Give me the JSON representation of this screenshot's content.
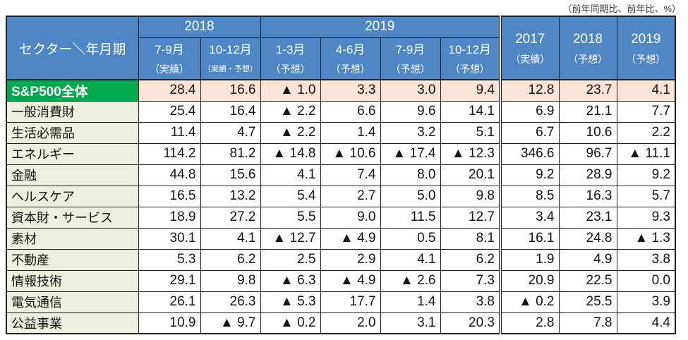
{
  "note": "（前年同期比、前年比、%）",
  "table": {
    "corner_label": "セクター＼年月期",
    "year_groups": [
      {
        "label": "2018",
        "span": 2
      },
      {
        "label": "2019",
        "span": 4
      }
    ],
    "quarter_columns": [
      {
        "period": "7-9月",
        "sub": "（実績）",
        "small": false
      },
      {
        "period": "10-12月",
        "sub": "（実績・予想）",
        "small": true
      },
      {
        "period": "1-3月",
        "sub": "（予想）",
        "small": false
      },
      {
        "period": "4-6月",
        "sub": "（予想）",
        "small": false
      },
      {
        "period": "7-9月",
        "sub": "（予想）",
        "small": false
      },
      {
        "period": "10-12月",
        "sub": "（予想）",
        "small": false
      }
    ],
    "annual_columns": [
      {
        "year": "2017",
        "sub": "（実績）"
      },
      {
        "year": "2018",
        "sub": "（予想）"
      },
      {
        "year": "2019",
        "sub": "（予想）"
      }
    ],
    "rows": [
      {
        "label": "S&P500全体",
        "highlight": true,
        "values": [
          "28.4",
          "16.6",
          "▲ 1.0",
          "3.3",
          "3.0",
          "9.4",
          "12.8",
          "23.7",
          "4.1"
        ]
      },
      {
        "label": "一般消費財",
        "highlight": false,
        "values": [
          "25.4",
          "16.4",
          "▲ 2.2",
          "6.6",
          "9.6",
          "14.1",
          "6.9",
          "21.1",
          "7.7"
        ]
      },
      {
        "label": "生活必需品",
        "highlight": false,
        "values": [
          "11.4",
          "4.7",
          "▲ 2.2",
          "1.4",
          "3.2",
          "5.1",
          "6.7",
          "10.6",
          "2.2"
        ]
      },
      {
        "label": "エネルギー",
        "highlight": false,
        "values": [
          "114.2",
          "81.2",
          "▲ 14.8",
          "▲ 10.6",
          "▲ 17.4",
          "▲ 12.3",
          "346.6",
          "96.7",
          "▲ 11.1"
        ]
      },
      {
        "label": "金融",
        "highlight": false,
        "values": [
          "44.8",
          "15.6",
          "4.1",
          "7.4",
          "8.0",
          "20.1",
          "9.2",
          "28.9",
          "9.2"
        ]
      },
      {
        "label": "ヘルスケア",
        "highlight": false,
        "values": [
          "16.5",
          "13.2",
          "5.4",
          "2.7",
          "5.0",
          "9.8",
          "8.5",
          "16.3",
          "5.7"
        ]
      },
      {
        "label": "資本財・サービス",
        "highlight": false,
        "values": [
          "18.9",
          "27.2",
          "5.5",
          "9.0",
          "11.5",
          "12.7",
          "3.4",
          "23.1",
          "9.3"
        ]
      },
      {
        "label": "素材",
        "highlight": false,
        "values": [
          "30.1",
          "4.1",
          "▲ 12.7",
          "▲ 4.9",
          "0.5",
          "8.1",
          "16.1",
          "24.8",
          "▲ 1.3"
        ]
      },
      {
        "label": "不動産",
        "highlight": false,
        "values": [
          "5.3",
          "6.2",
          "2.5",
          "2.9",
          "4.1",
          "6.2",
          "1.9",
          "4.9",
          "3.8"
        ]
      },
      {
        "label": "情報技術",
        "highlight": false,
        "values": [
          "29.1",
          "9.8",
          "▲ 6.3",
          "▲ 4.9",
          "▲ 2.6",
          "7.3",
          "20.9",
          "22.5",
          "0.0"
        ]
      },
      {
        "label": "電気通信",
        "highlight": false,
        "values": [
          "26.1",
          "26.3",
          "▲ 5.3",
          "17.7",
          "1.4",
          "3.8",
          "▲ 0.2",
          "25.5",
          "3.9"
        ]
      },
      {
        "label": "公益事業",
        "highlight": false,
        "values": [
          "10.9",
          "▲ 9.7",
          "▲ 0.2",
          "2.0",
          "3.1",
          "20.3",
          "2.8",
          "7.8",
          "4.4"
        ]
      }
    ],
    "colors": {
      "header_bg": "#4E86C6",
      "header_text": "#FFFFFF",
      "sp500_label_bg": "#00A84E",
      "sp500_row_bg": "#FBE3D6",
      "sector_label_bg": "#EBF1DE",
      "border": "#1F1F1F"
    }
  },
  "chart_data": {
    "type": "table",
    "title": "S&P500セクター別増益率（前年同期比、前年比、%）",
    "unit_note": "（前年同期比、前年比、%）",
    "columns": [
      "セクター＼年月期",
      "2018 7-9月（実績）",
      "2018 10-12月（実績・予想）",
      "2019 1-3月（予想）",
      "2019 4-6月（予想）",
      "2019 7-9月（予想）",
      "2019 10-12月（予想）",
      "2017（実績）",
      "2018（予想）",
      "2019（予想）"
    ],
    "rows": [
      [
        "S&P500全体",
        28.4,
        16.6,
        -1.0,
        3.3,
        3.0,
        9.4,
        12.8,
        23.7,
        4.1
      ],
      [
        "一般消費財",
        25.4,
        16.4,
        -2.2,
        6.6,
        9.6,
        14.1,
        6.9,
        21.1,
        7.7
      ],
      [
        "生活必需品",
        11.4,
        4.7,
        -2.2,
        1.4,
        3.2,
        5.1,
        6.7,
        10.6,
        2.2
      ],
      [
        "エネルギー",
        114.2,
        81.2,
        -14.8,
        -10.6,
        -17.4,
        -12.3,
        346.6,
        96.7,
        -11.1
      ],
      [
        "金融",
        44.8,
        15.6,
        4.1,
        7.4,
        8.0,
        20.1,
        9.2,
        28.9,
        9.2
      ],
      [
        "ヘルスケア",
        16.5,
        13.2,
        5.4,
        2.7,
        5.0,
        9.8,
        8.5,
        16.3,
        5.7
      ],
      [
        "資本財・サービス",
        18.9,
        27.2,
        5.5,
        9.0,
        11.5,
        12.7,
        3.4,
        23.1,
        9.3
      ],
      [
        "素材",
        30.1,
        4.1,
        -12.7,
        -4.9,
        0.5,
        8.1,
        16.1,
        24.8,
        -1.3
      ],
      [
        "不動産",
        5.3,
        6.2,
        2.5,
        2.9,
        4.1,
        6.2,
        1.9,
        4.9,
        3.8
      ],
      [
        "情報技術",
        29.1,
        9.8,
        -6.3,
        -4.9,
        -2.6,
        7.3,
        20.9,
        22.5,
        0.0
      ],
      [
        "電気通信",
        26.1,
        26.3,
        -5.3,
        17.7,
        1.4,
        3.8,
        -0.2,
        25.5,
        3.9
      ],
      [
        "公益事業",
        10.9,
        -9.7,
        -0.2,
        2.0,
        3.1,
        20.3,
        2.8,
        7.8,
        4.4
      ]
    ],
    "negative_marker": "▲"
  }
}
